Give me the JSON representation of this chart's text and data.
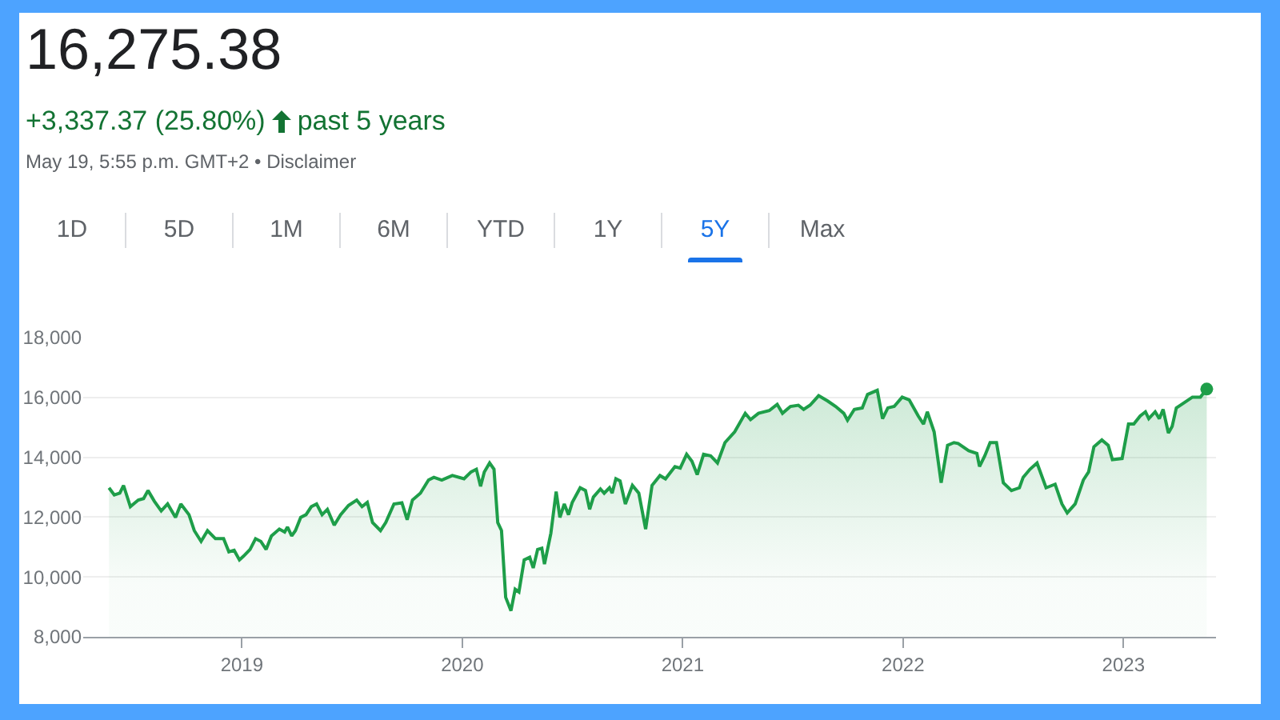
{
  "chart_data": {
    "type": "area",
    "title": "16,275.38",
    "subtitle": "+3,337.37 (25.80%)",
    "annotations": [
      "past 5 years",
      "May 19, 5:55 p.m. GMT+2 • Disclaimer",
      "1D",
      "5D",
      "1M",
      "6M",
      "YTD",
      "1Y",
      "5Y",
      "Max"
    ],
    "series": [
      {
        "color": "#1e9e49",
        "x": [
          2018.397,
          2018.421,
          2018.446,
          2018.463,
          2018.494,
          2018.53,
          2018.554,
          2018.574,
          2018.603,
          2018.634,
          2018.663,
          2018.699,
          2018.723,
          2018.76,
          2018.784,
          2018.815,
          2018.844,
          2018.88,
          2018.917,
          2018.941,
          2018.965,
          2018.989,
          2019.008,
          2019.037,
          2019.062,
          2019.086,
          2019.11,
          2019.134,
          2019.17,
          2019.194,
          2019.207,
          2019.226,
          2019.243,
          2019.267,
          2019.291,
          2019.315,
          2019.339,
          2019.364,
          2019.388,
          2019.419,
          2019.448,
          2019.484,
          2019.521,
          2019.545,
          2019.569,
          2019.593,
          2019.629,
          2019.653,
          2019.69,
          2019.726,
          2019.75,
          2019.774,
          2019.81,
          2019.847,
          2019.871,
          2019.907,
          2019.955,
          2020.008,
          2020.04,
          2020.064,
          2020.083,
          2020.1,
          2020.124,
          2020.144,
          2020.161,
          2020.178,
          2020.197,
          2020.221,
          2020.24,
          2020.257,
          2020.281,
          2020.306,
          2020.322,
          2020.342,
          2020.361,
          2020.373,
          2020.402,
          2020.426,
          2020.443,
          2020.463,
          2020.482,
          2020.499,
          2020.535,
          2020.559,
          2020.578,
          2020.595,
          2020.627,
          2020.644,
          2020.668,
          2020.68,
          2020.697,
          2020.716,
          2020.74,
          2020.772,
          2020.801,
          2020.832,
          2020.861,
          2020.897,
          2020.922,
          2020.965,
          2020.989,
          2021.018,
          2021.042,
          2021.066,
          2021.095,
          2021.127,
          2021.158,
          2021.192,
          2021.236,
          2021.284,
          2021.308,
          2021.344,
          2021.393,
          2021.429,
          2021.453,
          2021.489,
          2021.525,
          2021.549,
          2021.578,
          2021.617,
          2021.658,
          2021.694,
          2021.731,
          2021.748,
          2021.779,
          2021.815,
          2021.839,
          2021.883,
          2021.907,
          2021.931,
          2021.96,
          2021.996,
          2022.028,
          2022.069,
          2022.093,
          2022.11,
          2022.141,
          2022.173,
          2022.202,
          2022.231,
          2022.25,
          2022.298,
          2022.335,
          2022.347,
          2022.371,
          2022.395,
          2022.424,
          2022.455,
          2022.492,
          2022.528,
          2022.545,
          2022.576,
          2022.608,
          2022.649,
          2022.69,
          2022.721,
          2022.745,
          2022.781,
          2022.818,
          2022.842,
          2022.866,
          2022.902,
          2022.931,
          2022.95,
          2022.994,
          2023.023,
          2023.047,
          2023.076,
          2023.1,
          2023.115,
          2023.144,
          2023.163,
          2023.18,
          2023.204,
          2023.221,
          2023.24,
          2023.277,
          2023.313,
          2023.349,
          2023.378
        ],
        "values": [
          12980,
          12740,
          12800,
          13060,
          12350,
          12570,
          12620,
          12890,
          12530,
          12210,
          12440,
          11990,
          12440,
          12080,
          11550,
          11190,
          11550,
          11280,
          11280,
          10840,
          10890,
          10570,
          10700,
          10920,
          11280,
          11190,
          10920,
          11370,
          11600,
          11500,
          11670,
          11370,
          11550,
          11990,
          12080,
          12350,
          12440,
          12080,
          12260,
          11730,
          12080,
          12390,
          12570,
          12350,
          12490,
          11820,
          11550,
          11820,
          12440,
          12480,
          11910,
          12570,
          12800,
          13240,
          13330,
          13240,
          13390,
          13280,
          13510,
          13600,
          13030,
          13510,
          13810,
          13600,
          11820,
          11550,
          9320,
          8870,
          9590,
          9500,
          10570,
          10660,
          10300,
          10920,
          10960,
          10430,
          11460,
          12850,
          11990,
          12440,
          12080,
          12490,
          12980,
          12890,
          12260,
          12670,
          12940,
          12800,
          12980,
          12800,
          13280,
          13210,
          12440,
          13060,
          12800,
          11600,
          13060,
          13390,
          13280,
          13690,
          13640,
          14100,
          13870,
          13420,
          14100,
          14050,
          13810,
          14490,
          14850,
          15470,
          15260,
          15470,
          15560,
          15770,
          15470,
          15700,
          15740,
          15600,
          15740,
          16060,
          15880,
          15700,
          15470,
          15240,
          15600,
          15650,
          16100,
          16240,
          15290,
          15650,
          15700,
          16010,
          15920,
          15380,
          15110,
          15520,
          14850,
          13150,
          14400,
          14490,
          14460,
          14220,
          14130,
          13690,
          14050,
          14490,
          14490,
          13150,
          12890,
          12980,
          13330,
          13600,
          13810,
          12980,
          13100,
          12440,
          12140,
          12440,
          13240,
          13510,
          14350,
          14580,
          14400,
          13920,
          13960,
          15110,
          15110,
          15380,
          15520,
          15290,
          15520,
          15290,
          15600,
          14810,
          15030,
          15650,
          15830,
          16010,
          16010,
          16280
        ]
      },
      {
        "type": "scatter",
        "color": "#1e9e49",
        "x": [
          2023.378
        ],
        "values": [
          16280
        ]
      }
    ],
    "xlim": [
      2018.28,
      2023.42
    ],
    "xticks": [
      2019,
      2020,
      2021,
      2022,
      2023
    ],
    "ylim": [
      8000,
      18000
    ],
    "yticks": [
      {
        "value": 8000,
        "label": "8,000"
      },
      {
        "value": 10000,
        "label": "10,000"
      },
      {
        "value": 12000,
        "label": "12,000"
      },
      {
        "value": 14000,
        "label": "14,000"
      },
      {
        "value": 16000,
        "label": "16,000"
      },
      {
        "value": 18000,
        "label": "18,000"
      }
    ],
    "grid": "y"
  }
}
